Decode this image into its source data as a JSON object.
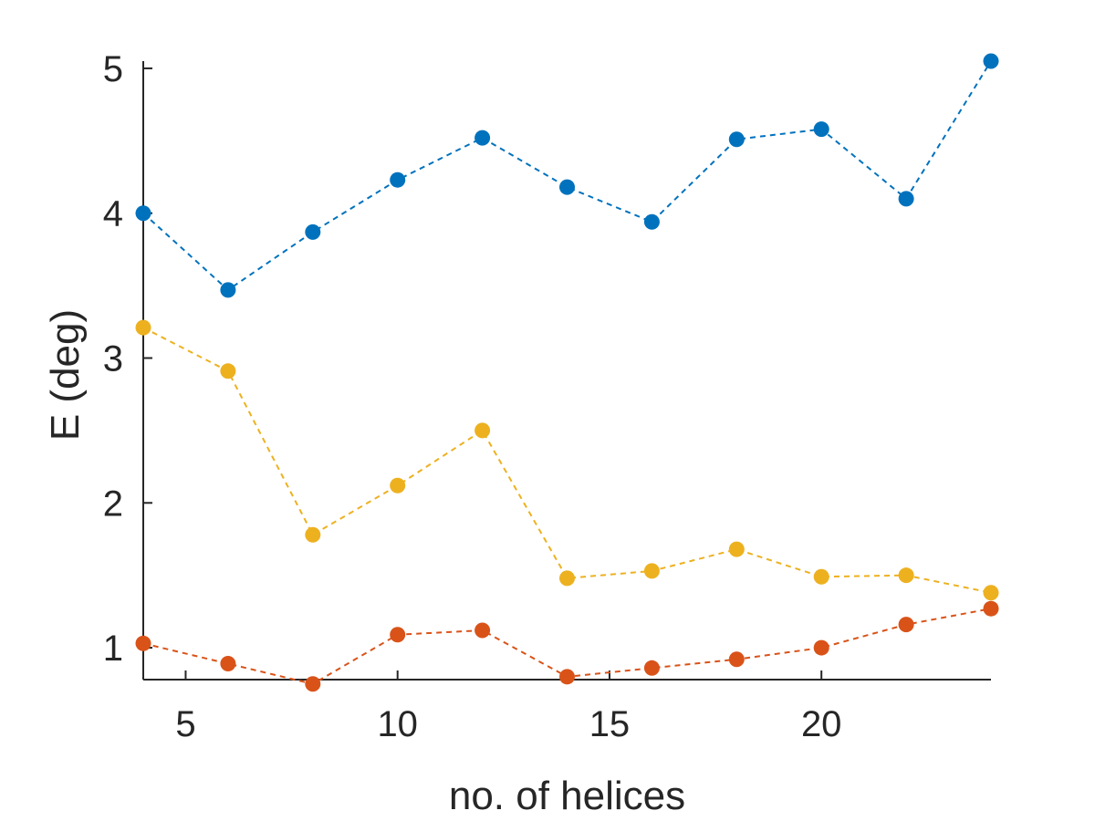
{
  "chart_data": {
    "type": "line",
    "title": "",
    "xlabel": "no. of helices",
    "ylabel": "E (deg)",
    "x": [
      4,
      6,
      8,
      10,
      12,
      14,
      16,
      18,
      20,
      22,
      24
    ],
    "xlim": [
      4,
      24
    ],
    "ylim": [
      0.78,
      5.05
    ],
    "xticks": [
      5,
      10,
      15,
      20
    ],
    "yticks": [
      1,
      2,
      3,
      4,
      5
    ],
    "grid": false,
    "legend": "none",
    "series": [
      {
        "color": "#0072BD",
        "values": [
          4.0,
          3.47,
          3.87,
          4.23,
          4.52,
          4.18,
          3.94,
          4.51,
          4.58,
          4.1,
          5.05
        ]
      },
      {
        "color": "#EDB120",
        "values": [
          3.21,
          2.91,
          1.78,
          2.12,
          2.5,
          1.48,
          1.53,
          1.68,
          1.49,
          1.5,
          1.38
        ]
      },
      {
        "color": "#D95319",
        "values": [
          1.03,
          0.89,
          0.75,
          1.09,
          1.12,
          0.8,
          0.86,
          0.92,
          1.0,
          1.16,
          1.27
        ]
      }
    ]
  }
}
